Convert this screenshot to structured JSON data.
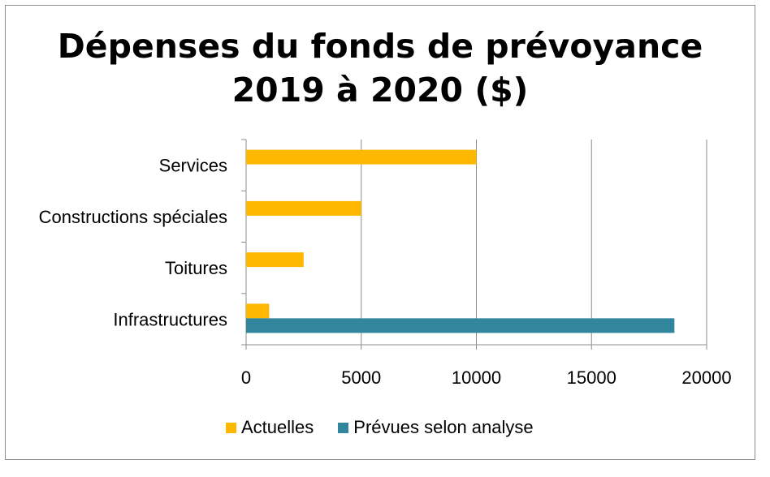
{
  "chart_data": {
    "type": "bar",
    "orientation": "horizontal",
    "title_lines": [
      "Dépenses du fonds de prévoyance",
      "2019 à 2020 ($)"
    ],
    "categories": [
      "Services",
      "Constructions spéciales",
      "Toitures",
      "Infrastructures"
    ],
    "series": [
      {
        "name": "Actuelles",
        "color": "#FFB800",
        "values": [
          10000,
          5000,
          2500,
          1000
        ]
      },
      {
        "name": "Prévues selon analyse",
        "color": "#31859C",
        "values": [
          0,
          0,
          0,
          18600
        ]
      }
    ],
    "xlim": [
      0,
      20000
    ],
    "xticks": [
      "0",
      "5000",
      "10000",
      "15000",
      "20000"
    ],
    "xlabel": "",
    "ylabel": "",
    "grid": "vertical",
    "legend_position": "bottom"
  }
}
